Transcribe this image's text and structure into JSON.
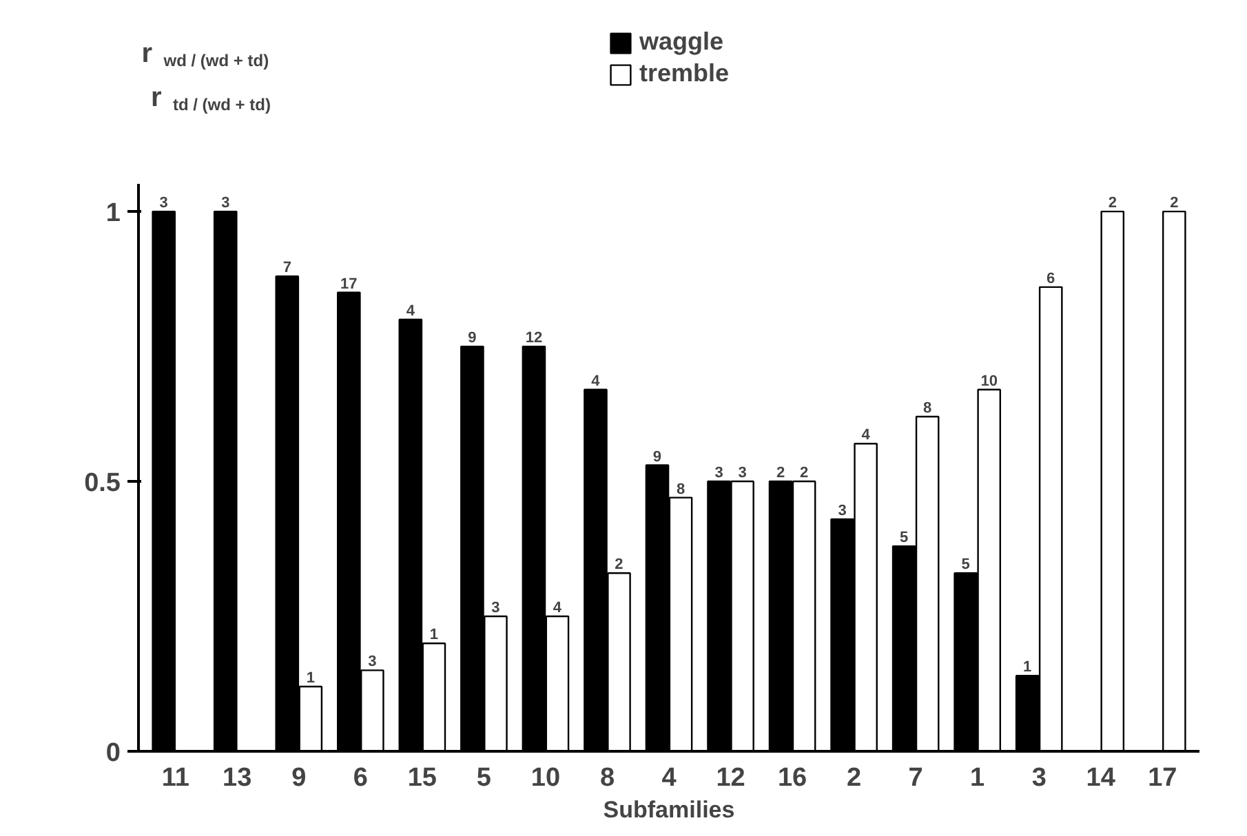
{
  "chart_data": {
    "type": "bar",
    "xlabel": "Subfamilies",
    "ylabel": "r$_{wd / (wd + td)}$\nr$_{td / (wd + td)}$",
    "categories": [
      "11",
      "13",
      "9",
      "6",
      "15",
      "5",
      "10",
      "8",
      "4",
      "12",
      "16",
      "2",
      "7",
      "1",
      "3",
      "14",
      "17"
    ],
    "series": [
      {
        "name": "waggle",
        "color": "#000000",
        "values": [
          1,
          1,
          0.88,
          0.85,
          0.8,
          0.75,
          0.75,
          0.67,
          0.53,
          0.5,
          0.5,
          0.43,
          0.38,
          0.33,
          0.14,
          null,
          null
        ]
      },
      {
        "name": "tremble",
        "color": "#ffffff",
        "values": [
          null,
          null,
          0.12,
          0.15,
          0.2,
          0.25,
          0.25,
          0.33,
          0.47,
          0.5,
          0.5,
          0.57,
          0.62,
          0.67,
          0.86,
          1,
          1
        ]
      }
    ],
    "annotations": [
      {
        "text": "3",
        "x": "11",
        "y": 1
      },
      {
        "text": "3",
        "x": "13",
        "y": 1
      },
      {
        "text": "7",
        "x": "9",
        "y": 0.88
      },
      {
        "text": "1",
        "x": "9",
        "y": 0.12
      },
      {
        "text": "17",
        "x": "6",
        "y": 0.85
      },
      {
        "text": "3",
        "x": "6",
        "y": 0.15
      },
      {
        "text": "4",
        "x": "15",
        "y": 0.8
      },
      {
        "text": "1",
        "x": "15",
        "y": 0.2
      },
      {
        "text": "9",
        "x": "5",
        "y": 0.75
      },
      {
        "text": "3",
        "x": "5",
        "y": 0.25
      },
      {
        "text": "12",
        "x": "10",
        "y": 0.75
      },
      {
        "text": "4",
        "x": "10",
        "y": 0.25
      },
      {
        "text": "4",
        "x": "8",
        "y": 0.67
      },
      {
        "text": "2",
        "x": "8",
        "y": 0.33
      },
      {
        "text": "9",
        "x": "4",
        "y": 0.53
      },
      {
        "text": "8",
        "x": "4",
        "y": 0.47
      },
      {
        "text": "3",
        "x": "12",
        "y": 0.5
      },
      {
        "text": "3",
        "x": "12",
        "y": 0.5
      },
      {
        "text": "2",
        "x": "16",
        "y": 0.5
      },
      {
        "text": "2",
        "x": "16",
        "y": 0.5
      },
      {
        "text": "3",
        "x": "2",
        "y": 0.43
      },
      {
        "text": "4",
        "x": "2",
        "y": 0.57
      },
      {
        "text": "5",
        "x": "7",
        "y": 0.38
      },
      {
        "text": "8",
        "x": "7",
        "y": 0.62
      },
      {
        "text": "5",
        "x": "1",
        "y": 0.33
      },
      {
        "text": "10",
        "x": "1",
        "y": 0.67
      },
      {
        "text": "1",
        "x": "3",
        "y": 0.14
      },
      {
        "text": "6",
        "x": "3",
        "y": 0.86
      },
      {
        "text": "2",
        "x": "14",
        "y": 1
      },
      {
        "text": "2",
        "x": "17",
        "y": 1
      }
    ],
    "ylim": [
      0,
      1.05
    ],
    "yticks": [
      0,
      0.5,
      1
    ],
    "grid": false,
    "legend": "top"
  }
}
